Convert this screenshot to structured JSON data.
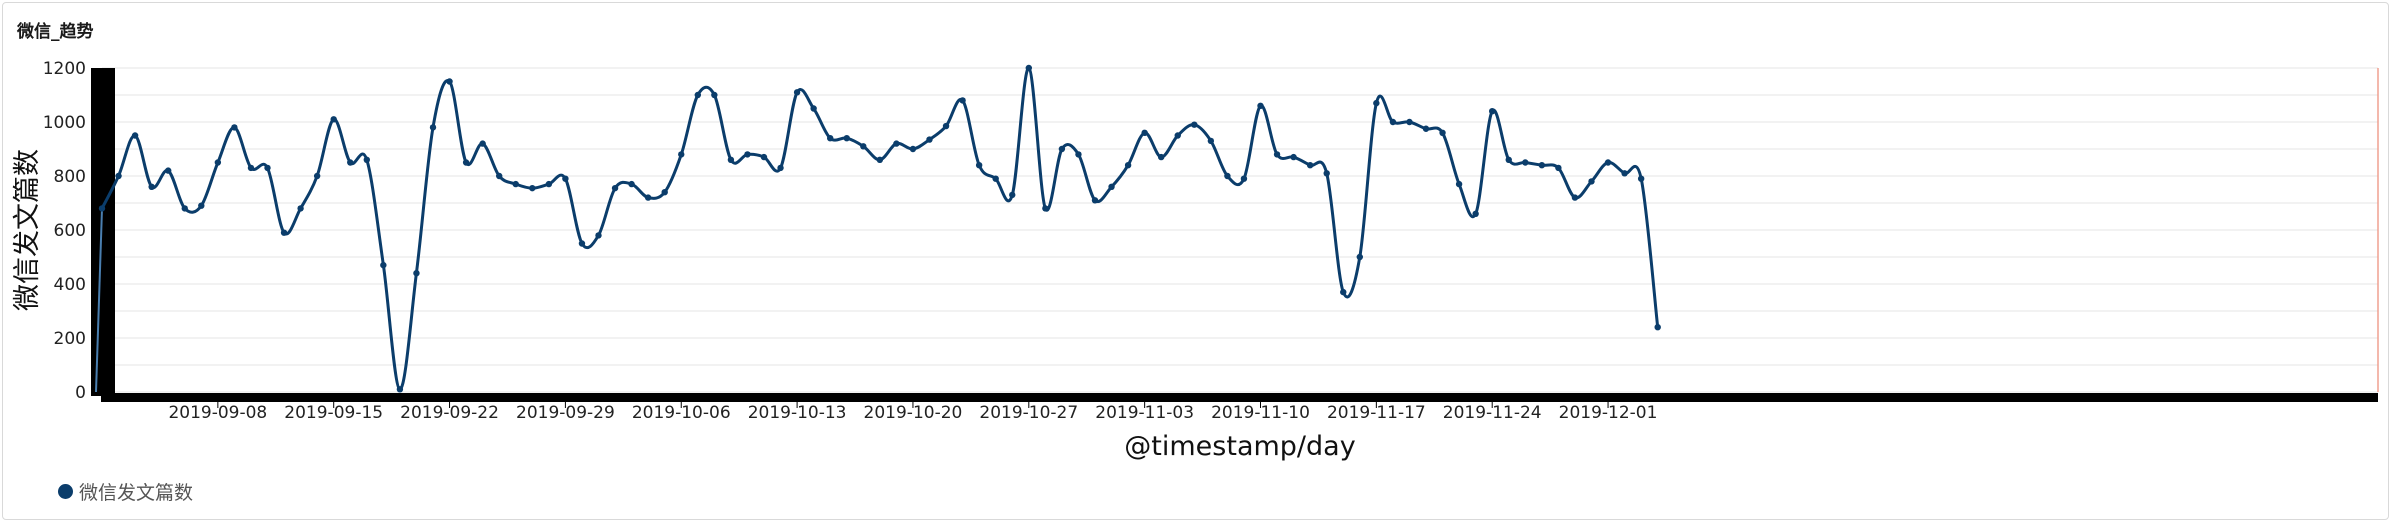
{
  "panel": {
    "title": "微信_趋势"
  },
  "colors": {
    "series": "#0b3d6b",
    "grid": "#e6e6e6",
    "axis": "#000000",
    "right_edge": "#f0a090"
  },
  "legend": {
    "label": "微信发文篇数",
    "position": "bottom-left"
  },
  "chart_data": {
    "type": "line",
    "title": "微信_趋势",
    "xlabel": "@timestamp/day",
    "ylabel": "微信发文篇数",
    "ylim": [
      0,
      1200
    ],
    "y_ticks": [
      0,
      200,
      400,
      600,
      800,
      1000,
      1200
    ],
    "x_tick_labels": [
      "2019-09-08",
      "2019-09-15",
      "2019-09-22",
      "2019-09-29",
      "2019-10-06",
      "2019-10-13",
      "2019-10-20",
      "2019-10-27",
      "2019-11-03",
      "2019-11-10",
      "2019-11-17",
      "2019-11-24",
      "2019-12-01"
    ],
    "x_start": "2019-09-01",
    "grid": true,
    "smooth": true,
    "series": [
      {
        "name": "微信发文篇数",
        "points": [
          [
            "2019-09-01",
            680
          ],
          [
            "2019-09-02",
            800
          ],
          [
            "2019-09-03",
            950
          ],
          [
            "2019-09-04",
            760
          ],
          [
            "2019-09-05",
            820
          ],
          [
            "2019-09-06",
            680
          ],
          [
            "2019-09-07",
            690
          ],
          [
            "2019-09-08",
            850
          ],
          [
            "2019-09-09",
            980
          ],
          [
            "2019-09-10",
            830
          ],
          [
            "2019-09-11",
            830
          ],
          [
            "2019-09-12",
            590
          ],
          [
            "2019-09-13",
            680
          ],
          [
            "2019-09-14",
            800
          ],
          [
            "2019-09-15",
            1010
          ],
          [
            "2019-09-16",
            850
          ],
          [
            "2019-09-17",
            860
          ],
          [
            "2019-09-18",
            470
          ],
          [
            "2019-09-19",
            10
          ],
          [
            "2019-09-20",
            440
          ],
          [
            "2019-09-21",
            980
          ],
          [
            "2019-09-22",
            1150
          ],
          [
            "2019-09-23",
            850
          ],
          [
            "2019-09-24",
            920
          ],
          [
            "2019-09-25",
            800
          ],
          [
            "2019-09-26",
            770
          ],
          [
            "2019-09-27",
            755
          ],
          [
            "2019-09-28",
            770
          ],
          [
            "2019-09-29",
            790
          ],
          [
            "2019-09-30",
            550
          ],
          [
            "2019-10-01",
            580
          ],
          [
            "2019-10-02",
            755
          ],
          [
            "2019-10-03",
            770
          ],
          [
            "2019-10-04",
            720
          ],
          [
            "2019-10-05",
            740
          ],
          [
            "2019-10-06",
            880
          ],
          [
            "2019-10-07",
            1100
          ],
          [
            "2019-10-08",
            1100
          ],
          [
            "2019-10-09",
            860
          ],
          [
            "2019-10-10",
            880
          ],
          [
            "2019-10-11",
            870
          ],
          [
            "2019-10-12",
            830
          ],
          [
            "2019-10-13",
            1110
          ],
          [
            "2019-10-14",
            1050
          ],
          [
            "2019-10-15",
            940
          ],
          [
            "2019-10-16",
            940
          ],
          [
            "2019-10-17",
            910
          ],
          [
            "2019-10-18",
            860
          ],
          [
            "2019-10-19",
            920
          ],
          [
            "2019-10-20",
            900
          ],
          [
            "2019-10-21",
            935
          ],
          [
            "2019-10-22",
            985
          ],
          [
            "2019-10-23",
            1080
          ],
          [
            "2019-10-24",
            840
          ],
          [
            "2019-10-25",
            790
          ],
          [
            "2019-10-26",
            730
          ],
          [
            "2019-10-27",
            1200
          ],
          [
            "2019-10-28",
            680
          ],
          [
            "2019-10-29",
            900
          ],
          [
            "2019-10-30",
            880
          ],
          [
            "2019-10-31",
            710
          ],
          [
            "2019-11-01",
            760
          ],
          [
            "2019-11-02",
            840
          ],
          [
            "2019-11-03",
            960
          ],
          [
            "2019-11-04",
            870
          ],
          [
            "2019-11-05",
            950
          ],
          [
            "2019-11-06",
            990
          ],
          [
            "2019-11-07",
            930
          ],
          [
            "2019-11-08",
            800
          ],
          [
            "2019-11-09",
            790
          ],
          [
            "2019-11-10",
            1060
          ],
          [
            "2019-11-11",
            880
          ],
          [
            "2019-11-12",
            870
          ],
          [
            "2019-11-13",
            840
          ],
          [
            "2019-11-14",
            810
          ],
          [
            "2019-11-15",
            370
          ],
          [
            "2019-11-16",
            500
          ],
          [
            "2019-11-17",
            1070
          ],
          [
            "2019-11-18",
            1000
          ],
          [
            "2019-11-19",
            1000
          ],
          [
            "2019-11-20",
            975
          ],
          [
            "2019-11-21",
            960
          ],
          [
            "2019-11-22",
            770
          ],
          [
            "2019-11-23",
            660
          ],
          [
            "2019-11-24",
            1040
          ],
          [
            "2019-11-25",
            860
          ],
          [
            "2019-11-26",
            850
          ],
          [
            "2019-11-27",
            840
          ],
          [
            "2019-11-28",
            830
          ],
          [
            "2019-11-29",
            720
          ],
          [
            "2019-11-30",
            780
          ],
          [
            "2019-12-01",
            850
          ],
          [
            "2019-12-02",
            810
          ],
          [
            "2019-12-03",
            790
          ],
          [
            "2019-12-04",
            240
          ]
        ]
      }
    ]
  }
}
